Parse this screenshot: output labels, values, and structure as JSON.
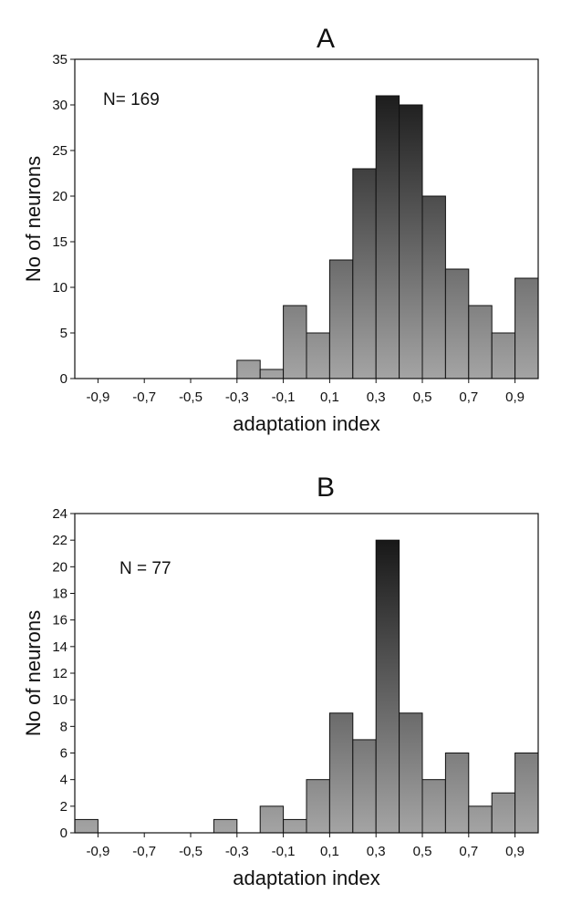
{
  "chart_data": [
    {
      "type": "bar",
      "title": "A",
      "xlabel": "adaptation index",
      "ylabel": "No of neurons",
      "annotation": "N= 169",
      "ylim": [
        0,
        35
      ],
      "yticks": [
        0,
        5,
        10,
        15,
        20,
        25,
        30,
        35
      ],
      "xlim": [
        -1.0,
        1.0
      ],
      "xticks": [
        "-0,9",
        "-0,7",
        "-0,5",
        "-0,3",
        "-0,1",
        "0,1",
        "0,3",
        "0,5",
        "0,7",
        "0,9"
      ],
      "bin_width": 0.1,
      "bin_centers": [
        -0.95,
        -0.85,
        -0.75,
        -0.65,
        -0.55,
        -0.45,
        -0.35,
        -0.25,
        -0.15,
        -0.05,
        0.05,
        0.15,
        0.25,
        0.35,
        0.45,
        0.55,
        0.65,
        0.75,
        0.85,
        0.95
      ],
      "values": [
        0,
        0,
        0,
        0,
        0,
        0,
        0,
        2,
        1,
        8,
        5,
        13,
        23,
        31,
        30,
        20,
        12,
        8,
        5,
        11
      ],
      "grid": false
    },
    {
      "type": "bar",
      "title": "B",
      "xlabel": "adaptation index",
      "ylabel": "No of neurons",
      "annotation": "N = 77",
      "ylim": [
        0,
        24
      ],
      "yticks": [
        0,
        2,
        4,
        6,
        8,
        10,
        12,
        14,
        16,
        18,
        20,
        22,
        24
      ],
      "xlim": [
        -1.0,
        1.0
      ],
      "xticks": [
        "-0,9",
        "-0,7",
        "-0,5",
        "-0,3",
        "-0,1",
        "0,1",
        "0,3",
        "0,5",
        "0,7",
        "0,9"
      ],
      "bin_width": 0.1,
      "bin_centers": [
        -0.95,
        -0.85,
        -0.75,
        -0.65,
        -0.55,
        -0.45,
        -0.35,
        -0.25,
        -0.15,
        -0.05,
        0.05,
        0.15,
        0.25,
        0.35,
        0.45,
        0.55,
        0.65,
        0.75,
        0.85,
        0.95
      ],
      "values": [
        1,
        0,
        0,
        0,
        0,
        0,
        1,
        0,
        2,
        1,
        4,
        9,
        7,
        22,
        9,
        4,
        6,
        2,
        3,
        6
      ],
      "grid": false
    }
  ]
}
